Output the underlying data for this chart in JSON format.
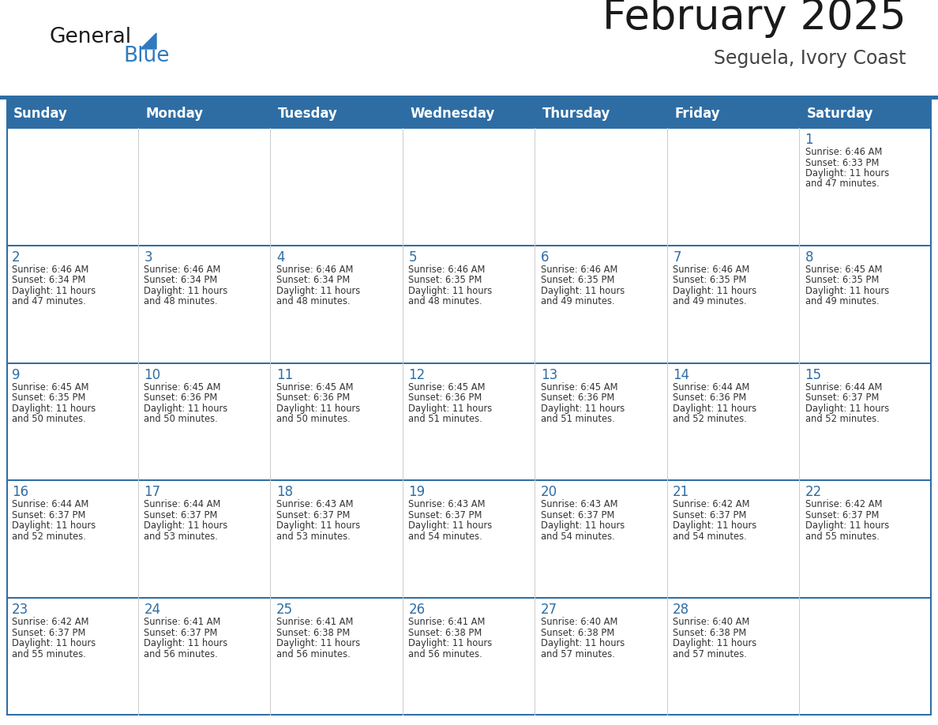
{
  "title": "February 2025",
  "subtitle": "Seguela, Ivory Coast",
  "days_of_week": [
    "Sunday",
    "Monday",
    "Tuesday",
    "Wednesday",
    "Thursday",
    "Friday",
    "Saturday"
  ],
  "header_bg_color": "#2E6DA4",
  "header_text_color": "#FFFFFF",
  "cell_bg_color": "#FFFFFF",
  "grid_line_color": "#2E6DA4",
  "day_num_color": "#2E6DA4",
  "text_color": "#333333",
  "background_color": "#FFFFFF",
  "title_color": "#1A1A1A",
  "subtitle_color": "#444444",
  "logo_general_color": "#1A1A1A",
  "logo_blue_color": "#2E7ABF",
  "calendar_data": [
    [
      null,
      null,
      null,
      null,
      null,
      null,
      {
        "day": 1,
        "sunrise": "6:46 AM",
        "sunset": "6:33 PM",
        "daylight": "11 hours and 47 minutes."
      }
    ],
    [
      {
        "day": 2,
        "sunrise": "6:46 AM",
        "sunset": "6:34 PM",
        "daylight": "11 hours and 47 minutes."
      },
      {
        "day": 3,
        "sunrise": "6:46 AM",
        "sunset": "6:34 PM",
        "daylight": "11 hours and 48 minutes."
      },
      {
        "day": 4,
        "sunrise": "6:46 AM",
        "sunset": "6:34 PM",
        "daylight": "11 hours and 48 minutes."
      },
      {
        "day": 5,
        "sunrise": "6:46 AM",
        "sunset": "6:35 PM",
        "daylight": "11 hours and 48 minutes."
      },
      {
        "day": 6,
        "sunrise": "6:46 AM",
        "sunset": "6:35 PM",
        "daylight": "11 hours and 49 minutes."
      },
      {
        "day": 7,
        "sunrise": "6:46 AM",
        "sunset": "6:35 PM",
        "daylight": "11 hours and 49 minutes."
      },
      {
        "day": 8,
        "sunrise": "6:45 AM",
        "sunset": "6:35 PM",
        "daylight": "11 hours and 49 minutes."
      }
    ],
    [
      {
        "day": 9,
        "sunrise": "6:45 AM",
        "sunset": "6:35 PM",
        "daylight": "11 hours and 50 minutes."
      },
      {
        "day": 10,
        "sunrise": "6:45 AM",
        "sunset": "6:36 PM",
        "daylight": "11 hours and 50 minutes."
      },
      {
        "day": 11,
        "sunrise": "6:45 AM",
        "sunset": "6:36 PM",
        "daylight": "11 hours and 50 minutes."
      },
      {
        "day": 12,
        "sunrise": "6:45 AM",
        "sunset": "6:36 PM",
        "daylight": "11 hours and 51 minutes."
      },
      {
        "day": 13,
        "sunrise": "6:45 AM",
        "sunset": "6:36 PM",
        "daylight": "11 hours and 51 minutes."
      },
      {
        "day": 14,
        "sunrise": "6:44 AM",
        "sunset": "6:36 PM",
        "daylight": "11 hours and 52 minutes."
      },
      {
        "day": 15,
        "sunrise": "6:44 AM",
        "sunset": "6:37 PM",
        "daylight": "11 hours and 52 minutes."
      }
    ],
    [
      {
        "day": 16,
        "sunrise": "6:44 AM",
        "sunset": "6:37 PM",
        "daylight": "11 hours and 52 minutes."
      },
      {
        "day": 17,
        "sunrise": "6:44 AM",
        "sunset": "6:37 PM",
        "daylight": "11 hours and 53 minutes."
      },
      {
        "day": 18,
        "sunrise": "6:43 AM",
        "sunset": "6:37 PM",
        "daylight": "11 hours and 53 minutes."
      },
      {
        "day": 19,
        "sunrise": "6:43 AM",
        "sunset": "6:37 PM",
        "daylight": "11 hours and 54 minutes."
      },
      {
        "day": 20,
        "sunrise": "6:43 AM",
        "sunset": "6:37 PM",
        "daylight": "11 hours and 54 minutes."
      },
      {
        "day": 21,
        "sunrise": "6:42 AM",
        "sunset": "6:37 PM",
        "daylight": "11 hours and 54 minutes."
      },
      {
        "day": 22,
        "sunrise": "6:42 AM",
        "sunset": "6:37 PM",
        "daylight": "11 hours and 55 minutes."
      }
    ],
    [
      {
        "day": 23,
        "sunrise": "6:42 AM",
        "sunset": "6:37 PM",
        "daylight": "11 hours and 55 minutes."
      },
      {
        "day": 24,
        "sunrise": "6:41 AM",
        "sunset": "6:37 PM",
        "daylight": "11 hours and 56 minutes."
      },
      {
        "day": 25,
        "sunrise": "6:41 AM",
        "sunset": "6:38 PM",
        "daylight": "11 hours and 56 minutes."
      },
      {
        "day": 26,
        "sunrise": "6:41 AM",
        "sunset": "6:38 PM",
        "daylight": "11 hours and 56 minutes."
      },
      {
        "day": 27,
        "sunrise": "6:40 AM",
        "sunset": "6:38 PM",
        "daylight": "11 hours and 57 minutes."
      },
      {
        "day": 28,
        "sunrise": "6:40 AM",
        "sunset": "6:38 PM",
        "daylight": "11 hours and 57 minutes."
      },
      null
    ]
  ]
}
